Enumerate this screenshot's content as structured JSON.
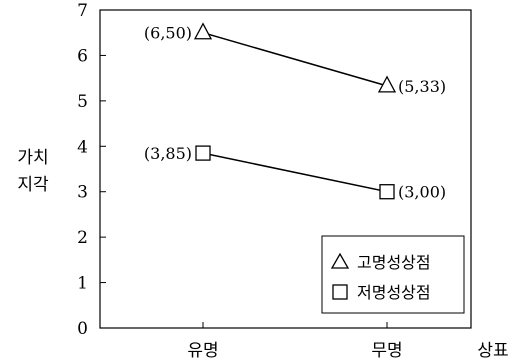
{
  "chart_data": {
    "type": "line",
    "categories": [
      "유명",
      "무명"
    ],
    "xlabel": "상표",
    "ylabel": [
      "가치",
      "지각"
    ],
    "ylim": [
      0,
      7
    ],
    "yticks": [
      "0",
      "1",
      "2",
      "3",
      "4",
      "5",
      "6",
      "7"
    ],
    "grid": false,
    "legend_position": "bottom-right",
    "series": [
      {
        "name": "고명성상점",
        "marker": "triangle",
        "values": [
          6.5,
          5.33
        ],
        "labels": [
          "(6,50)",
          "(5,33)"
        ]
      },
      {
        "name": "저명성상점",
        "marker": "square",
        "values": [
          3.85,
          3.0
        ],
        "labels": [
          "(3,85)",
          "(3,00)"
        ]
      }
    ],
    "legend": [
      {
        "symbol": "△",
        "label": "고명성상점"
      },
      {
        "symbol": "□",
        "label": "저명성상점"
      }
    ]
  }
}
